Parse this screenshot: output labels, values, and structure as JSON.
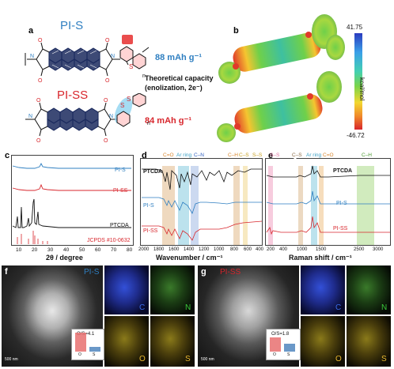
{
  "panels": {
    "a": {
      "label": "a",
      "pis_title": "PI-S",
      "piss_title": "PI-SS",
      "pis_capacity": "88 mAh g⁻¹",
      "piss_capacity": "84 mAh g⁻¹",
      "theoretical_line1": "Theoretical capacity",
      "theoretical_line2": "(enolization, 2e⁻)",
      "atom_O": "O",
      "atom_N": "N",
      "atom_S": "S",
      "repeat_n": "n"
    },
    "b": {
      "label": "b",
      "colorbar_max": "41.75",
      "colorbar_min": "-46.72",
      "colorbar_unit": "kcal/mol"
    },
    "c": {
      "label": "c",
      "series": [
        "PI-S",
        "PI-SS",
        "PTCDA",
        "JCPDS #10-0632"
      ],
      "xlabel": "2θ / degree",
      "xticks": [
        "10",
        "20",
        "30",
        "40",
        "50",
        "60",
        "70",
        "80"
      ]
    },
    "d": {
      "label": "d",
      "bands": [
        "C=O",
        "Ar ring",
        "C–N",
        "C–H",
        "C–S",
        "S–S"
      ],
      "series": [
        "PTCDA",
        "PI-S",
        "PI-SS"
      ],
      "xlabel": "Wavenumber / cm⁻¹",
      "xticks": [
        "2000",
        "1800",
        "1600",
        "1400",
        "1200",
        "1000",
        "800",
        "600",
        "400"
      ]
    },
    "e": {
      "label": "e",
      "bands": [
        "S–S",
        "C–S",
        "Ar ring",
        "C=O",
        "C–H"
      ],
      "series": [
        "PTCDA",
        "PI-S",
        "PI-SS"
      ],
      "xlabel": "Raman shift / cm⁻¹",
      "xticks": [
        "200",
        "400",
        "1000",
        "1500",
        "2500",
        "3000"
      ]
    },
    "f": {
      "label": "f",
      "title": "PI-S",
      "maps": [
        "C",
        "N",
        "O",
        "S"
      ],
      "ratio_text": "O/S=4.1",
      "bar_labels": [
        "O",
        "S"
      ],
      "bar_values": [
        4.1,
        1
      ],
      "scale": "500 nm"
    },
    "g": {
      "label": "g",
      "title": "PI-SS",
      "maps": [
        "C",
        "N",
        "O",
        "S"
      ],
      "ratio_text": "O/S=1.8",
      "bar_labels": [
        "O",
        "S"
      ],
      "bar_values": [
        1.8,
        1
      ],
      "scale": "500 nm"
    }
  },
  "colors": {
    "pis": "#2f7fc1",
    "piss": "#d8262c",
    "ptcda": "#111111",
    "jcpds": "#d8262c"
  }
}
